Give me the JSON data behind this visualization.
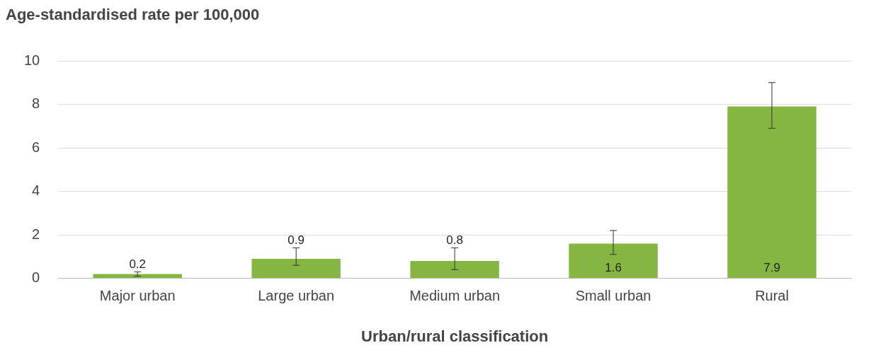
{
  "chart_data": {
    "type": "bar",
    "ylabel": "Age-standardised rate per 100,000",
    "xlabel": "Urban/rural classification",
    "categories": [
      "Major urban",
      "Large urban",
      "Medium urban",
      "Small urban",
      "Rural"
    ],
    "values": [
      0.2,
      0.9,
      0.8,
      1.6,
      7.9
    ],
    "errors": [
      [
        0.1,
        0.3
      ],
      [
        0.6,
        1.4
      ],
      [
        0.4,
        1.4
      ],
      [
        1.1,
        2.2
      ],
      [
        6.9,
        9.0
      ]
    ],
    "color": "#84b641",
    "ylim": [
      0,
      10
    ],
    "yticks": [
      0,
      2,
      4,
      6,
      8,
      10
    ],
    "grid": "y",
    "data_labels": true,
    "legend": false
  }
}
